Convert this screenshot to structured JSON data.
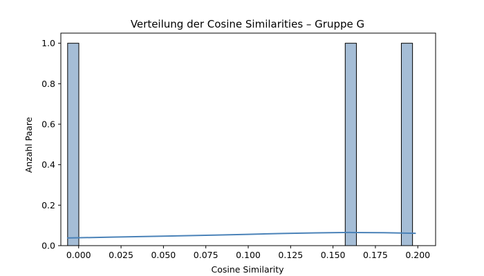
{
  "chart_data": {
    "type": "bar",
    "subtype": "histogram-with-kde",
    "title": "Verteilung der Cosine Similarities – Gruppe G",
    "xlabel": "Cosine Similarity",
    "ylabel": "Anzahl Paare",
    "xlim": [
      -0.0105,
      0.2105
    ],
    "ylim": [
      0,
      1.05
    ],
    "x_ticks": [
      0.0,
      0.025,
      0.05,
      0.075,
      0.1,
      0.125,
      0.15,
      0.175,
      0.2
    ],
    "x_tick_labels": [
      "0.000",
      "0.025",
      "0.050",
      "0.075",
      "0.100",
      "0.125",
      "0.150",
      "0.175",
      "0.200"
    ],
    "y_ticks": [
      0.0,
      0.2,
      0.4,
      0.6,
      0.8,
      1.0
    ],
    "y_tick_labels": [
      "0.0",
      "0.2",
      "0.4",
      "0.6",
      "0.8",
      "1.0"
    ],
    "grid": false,
    "bars": [
      {
        "x_start": -0.0065,
        "x_end": 0.0001,
        "count": 1
      },
      {
        "x_start": 0.1572,
        "x_end": 0.1638,
        "count": 1
      },
      {
        "x_start": 0.1903,
        "x_end": 0.1969,
        "count": 1
      }
    ],
    "kde": {
      "x": [
        -0.0065,
        0.02,
        0.05,
        0.08,
        0.1,
        0.12,
        0.14,
        0.16,
        0.18,
        0.1985
      ],
      "y": [
        0.038,
        0.042,
        0.047,
        0.052,
        0.056,
        0.06,
        0.063,
        0.065,
        0.064,
        0.061
      ]
    },
    "colors": {
      "bar_fill": "#a5bdd6",
      "bar_edge": "#000000",
      "kde_line": "#4a82b8"
    }
  }
}
